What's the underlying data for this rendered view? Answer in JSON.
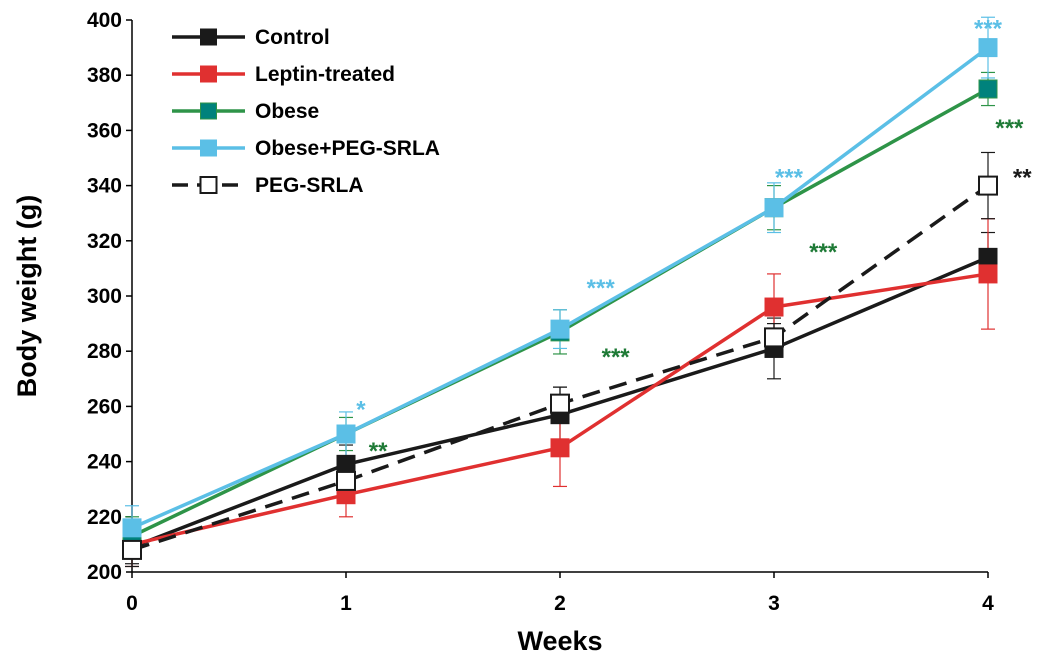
{
  "chart_data": {
    "type": "line",
    "xlabel": "Weeks",
    "ylabel": "Body weight (g)",
    "x": [
      0,
      1,
      2,
      3,
      4
    ],
    "xlim": [
      0,
      4
    ],
    "ylim": [
      200,
      400
    ],
    "yticks": [
      200,
      220,
      240,
      260,
      280,
      300,
      320,
      340,
      360,
      380,
      400
    ],
    "xticks": [
      0,
      1,
      2,
      3,
      4
    ],
    "grid": false,
    "legend_position": "top-left",
    "series": [
      {
        "name": "Control",
        "values": [
          209,
          239,
          257,
          281,
          314
        ],
        "errors": [
          6,
          7,
          10,
          11,
          9
        ],
        "color": "#1a1a1a",
        "marker_fill": "#1a1a1a",
        "dashed": false
      },
      {
        "name": "Leptin-treated",
        "values": [
          210,
          228,
          245,
          296,
          308
        ],
        "errors": [
          8,
          8,
          14,
          12,
          20
        ],
        "color": "#e03030",
        "marker_fill": "#e03030",
        "dashed": false
      },
      {
        "name": "Obese",
        "values": [
          213,
          250,
          287,
          332,
          375
        ],
        "errors": [
          7,
          6,
          8,
          8,
          6
        ],
        "color": "#2e9448",
        "marker_fill": "#00827c",
        "dashed": false
      },
      {
        "name": "Obese+PEG-SRLA",
        "values": [
          216,
          250,
          288,
          332,
          390
        ],
        "errors": [
          8,
          8,
          7,
          9,
          11
        ],
        "color": "#5bbfe6",
        "marker_fill": "#5bbfe6",
        "dashed": false
      },
      {
        "name": "PEG-SRLA",
        "values": [
          208,
          233,
          261,
          285,
          340
        ],
        "errors": [
          6,
          5,
          6,
          5,
          12
        ],
        "color": "#1a1a1a",
        "marker_fill": "#ffffff",
        "dashed": true
      }
    ],
    "annotations": [
      {
        "text": "*",
        "x": 1.07,
        "y": 256,
        "color": "#5bbfe6"
      },
      {
        "text": "**",
        "x": 1.15,
        "y": 241,
        "color": "#1e7a36"
      },
      {
        "text": "***",
        "x": 2.19,
        "y": 300,
        "color": "#5bbfe6"
      },
      {
        "text": "***",
        "x": 2.26,
        "y": 275,
        "color": "#1e7a36"
      },
      {
        "text": "***",
        "x": 3.07,
        "y": 340,
        "color": "#5bbfe6"
      },
      {
        "text": "***",
        "x": 3.23,
        "y": 313,
        "color": "#1e7a36"
      },
      {
        "text": "***",
        "x": 4.0,
        "y": 394,
        "color": "#5bbfe6"
      },
      {
        "text": "***",
        "x": 4.1,
        "y": 358,
        "color": "#1e7a36"
      },
      {
        "text": "**",
        "x": 4.16,
        "y": 340,
        "color": "#1a1a1a"
      }
    ]
  }
}
